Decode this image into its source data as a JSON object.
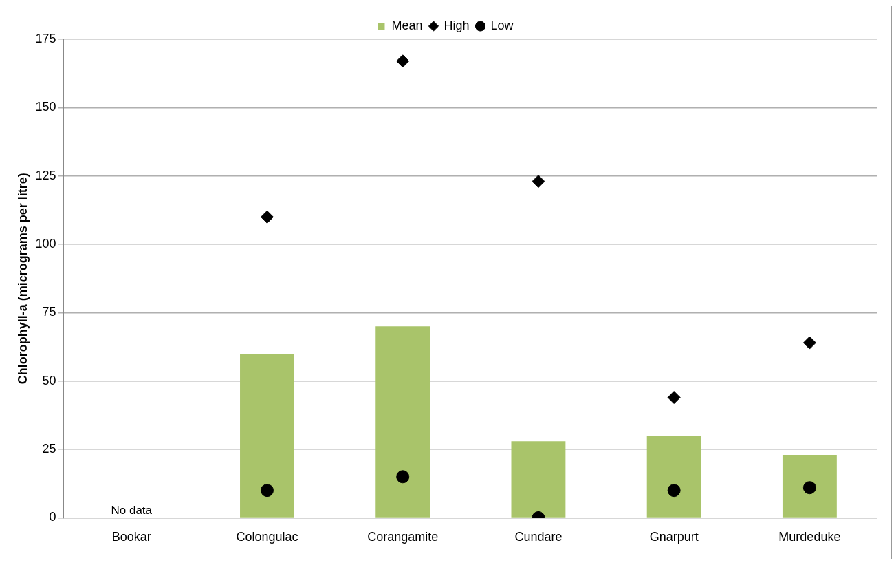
{
  "chart_data": {
    "type": "bar",
    "ylabel": "Chlorophyll-a (micrograms per litre)",
    "categories": [
      "Bookar",
      "Colongulac",
      "Corangamite",
      "Cundare",
      "Gnarpurt",
      "Murdeduke"
    ],
    "series": [
      {
        "name": "Mean",
        "color": "#a9c46a",
        "values": [
          null,
          60,
          70,
          28,
          30,
          23
        ]
      },
      {
        "name": "High",
        "type": "scatter",
        "color": "#000000",
        "marker": "diamond",
        "values": [
          null,
          110,
          167,
          123,
          44,
          64
        ]
      },
      {
        "name": "Low",
        "type": "scatter",
        "color": "#000000",
        "marker": "circle",
        "values": [
          null,
          10,
          15,
          0,
          10,
          11
        ]
      }
    ],
    "ylim": [
      0,
      175
    ],
    "yticks": [
      0,
      25,
      50,
      75,
      100,
      125,
      150,
      175
    ],
    "grid": "y",
    "legend": "top",
    "annotations": [
      "No data"
    ]
  }
}
